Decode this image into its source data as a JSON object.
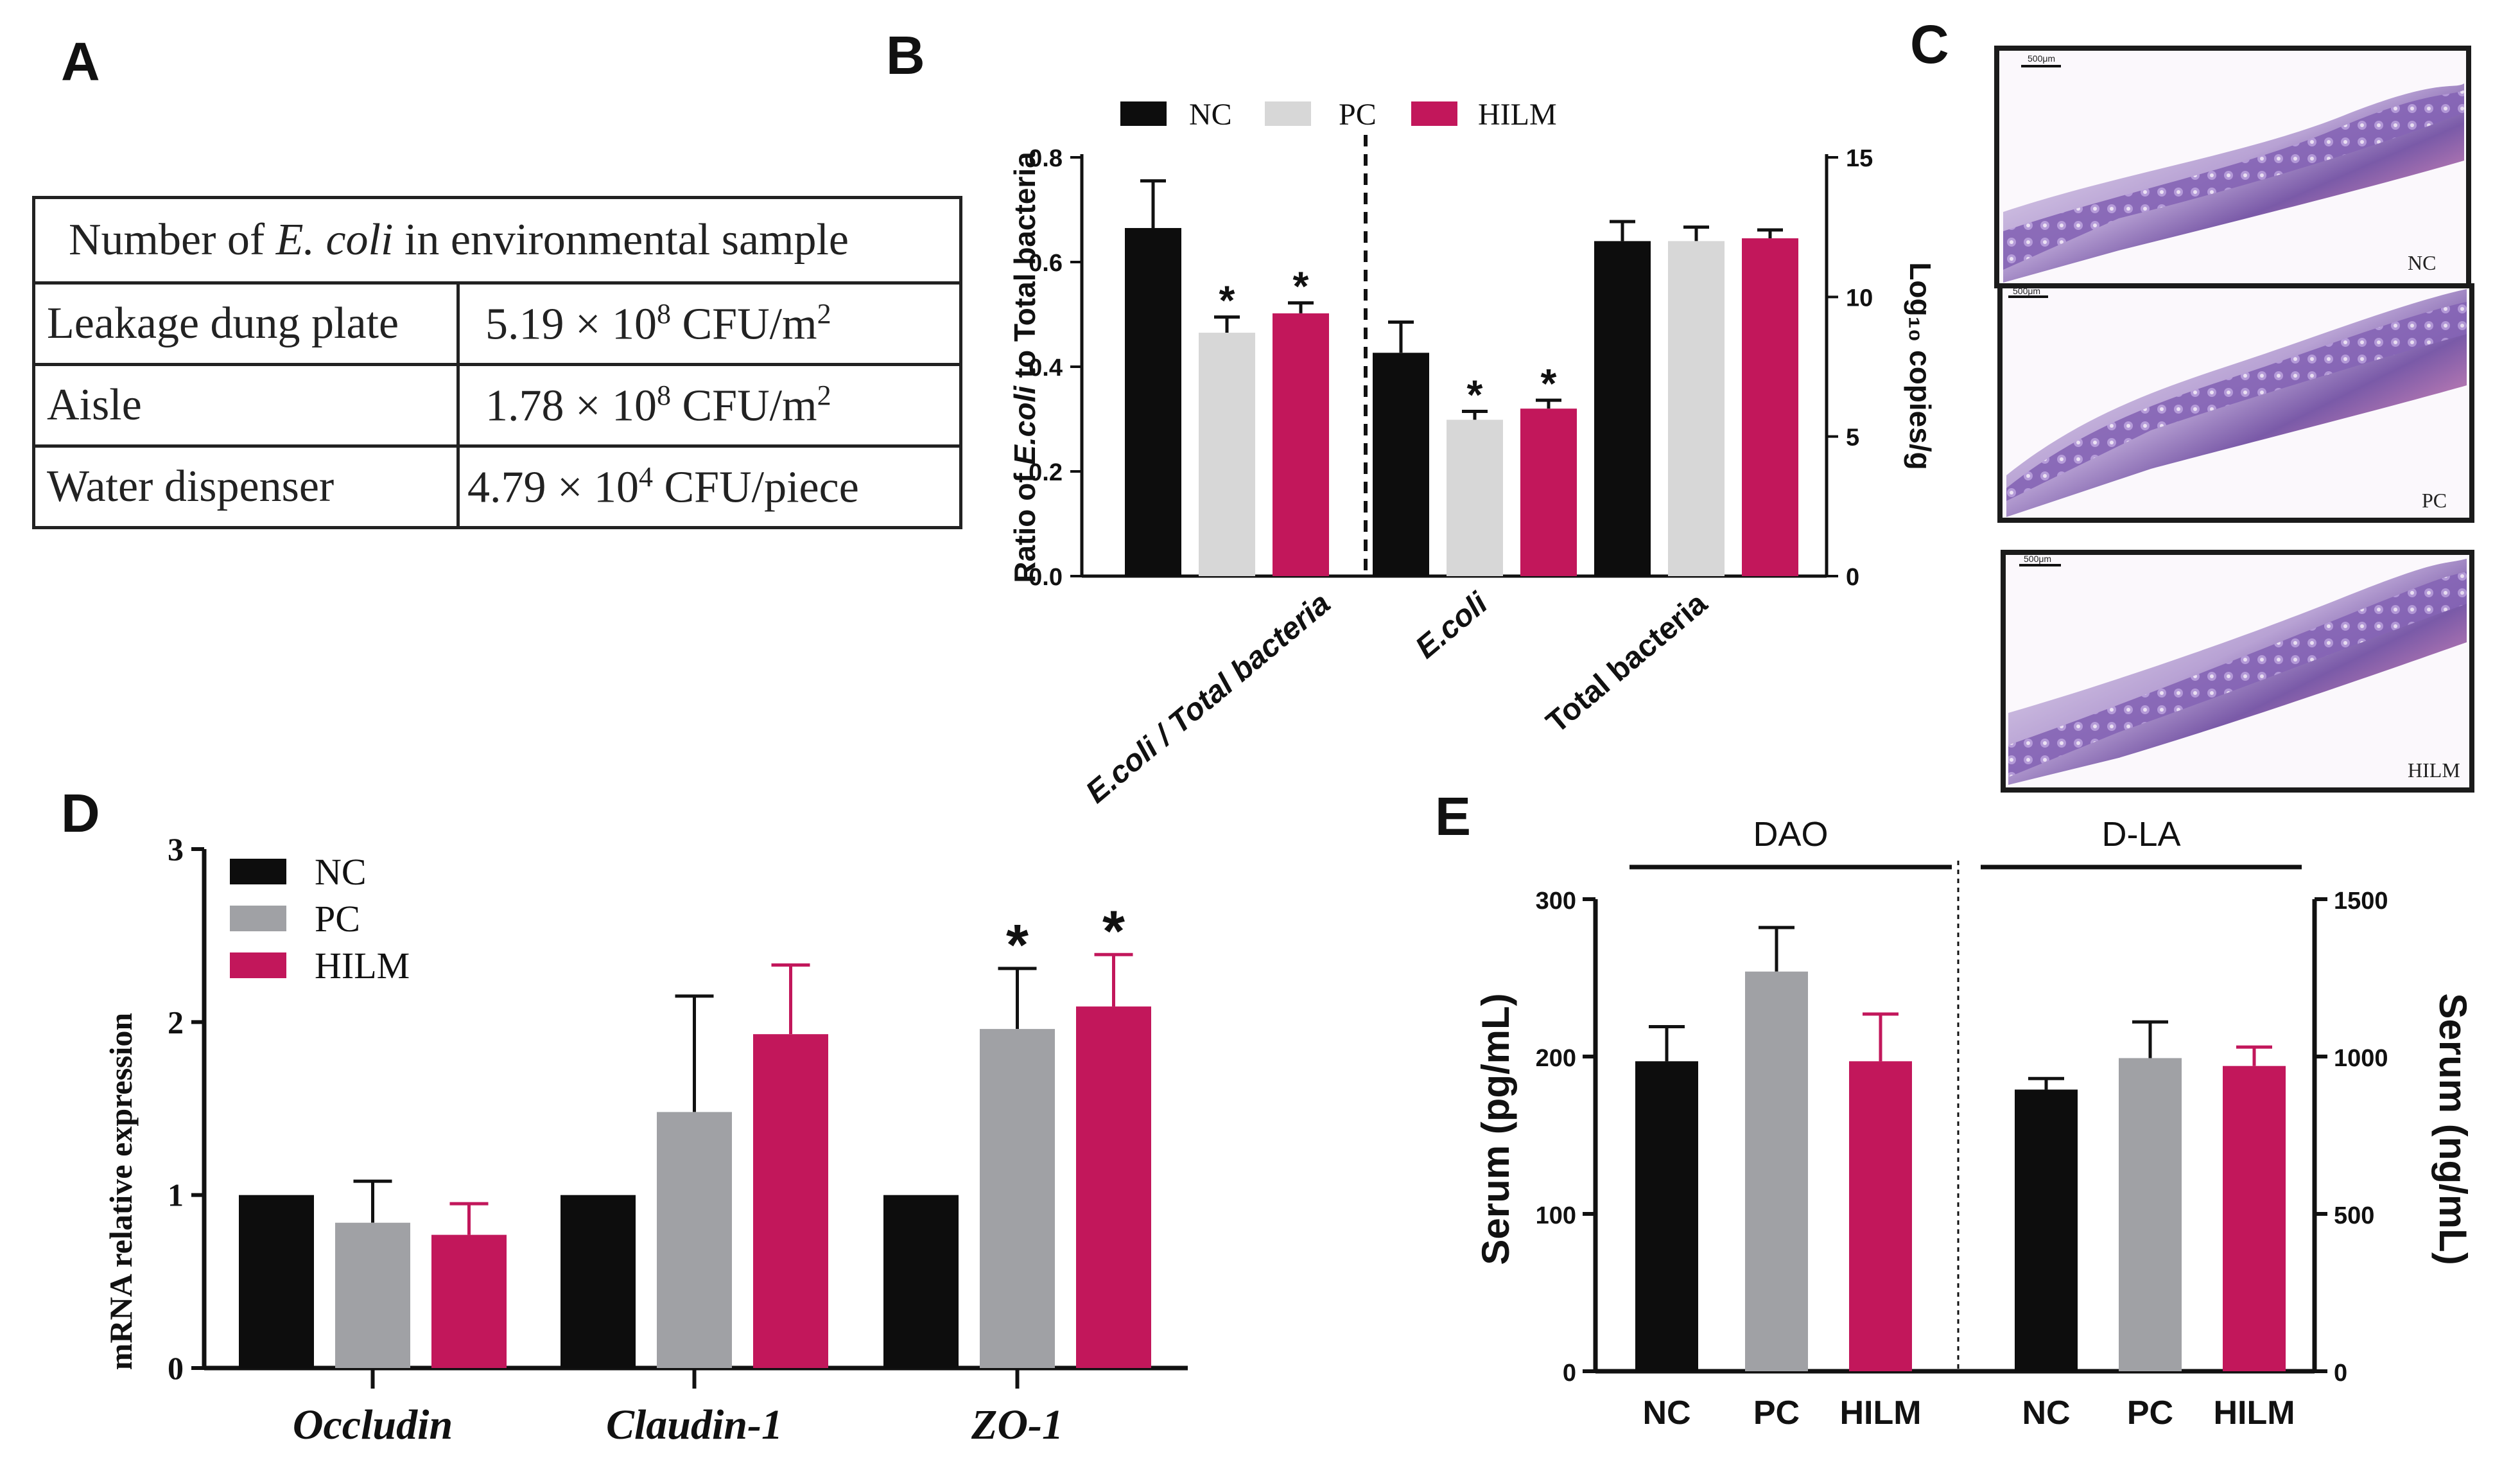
{
  "panels": {
    "a": "A",
    "b": "B",
    "c": "C",
    "d": "D",
    "e": "E"
  },
  "table": {
    "header_prefix": "Number of ",
    "header_species": "E. coli",
    "header_suffix": " in environmental sample",
    "rows": [
      {
        "site": "Leakage dung plate",
        "mantissa": "5.19 × 10",
        "exp": "8",
        "unit": " CFU/m",
        "unit_exp": "2"
      },
      {
        "site": "Aisle",
        "mantissa": "1.78 × 10",
        "exp": "8",
        "unit": " CFU/m",
        "unit_exp": "2"
      },
      {
        "site": "Water dispenser",
        "mantissa": "4.79 × 10",
        "exp": "4",
        "unit": " CFU/piece",
        "unit_exp": ""
      }
    ]
  },
  "micrographs": [
    {
      "label": "NC",
      "scale": "500μm"
    },
    {
      "label": "PC",
      "scale": "500μm"
    },
    {
      "label": "HILM",
      "scale": "500μm"
    }
  ],
  "colors": {
    "NC": "#0d0d0d",
    "PC_light": "#d7d7d7",
    "PC_dark": "#a0a1a5",
    "HILM": "#c2175b"
  },
  "chart_data": [
    {
      "id": "B",
      "type": "bar",
      "groups": [
        "NC",
        "PC",
        "HILM"
      ],
      "legend": [
        "NC",
        "PC",
        "HILM"
      ],
      "left_axis": {
        "label_prefix": "Ratio of ",
        "label_species": "E.coli",
        "label_suffix": "  to Total bacteria",
        "ylim": [
          0,
          0.8
        ],
        "ticks": [
          "0.0",
          "0.2",
          "0.4",
          "0.6",
          "0.8"
        ],
        "tick_values": [
          0,
          0.2,
          0.4,
          0.6,
          0.8
        ]
      },
      "right_axis": {
        "label": "Log₁₀ copies/g",
        "ylim": [
          0,
          15
        ],
        "ticks": [
          "0",
          "5",
          "10",
          "15"
        ],
        "tick_values": [
          0,
          5,
          10,
          15
        ]
      },
      "categories": [
        {
          "name": "E.coli / Total bacteria",
          "axis": "left",
          "values": [
            0.665,
            0.465,
            0.502
          ],
          "errors": [
            0.09,
            0.03,
            0.02
          ],
          "stars": [
            "",
            "*",
            "*"
          ]
        },
        {
          "name": "E.coli",
          "axis": "right",
          "values": [
            8.0,
            5.6,
            6.0
          ],
          "errors": [
            1.1,
            0.3,
            0.3
          ],
          "stars": [
            "",
            "*",
            "*"
          ]
        },
        {
          "name": "Total bacteria",
          "axis": "right",
          "values": [
            12.0,
            12.0,
            12.1
          ],
          "errors": [
            0.7,
            0.5,
            0.3
          ],
          "stars": [
            "",
            "",
            ""
          ]
        }
      ]
    },
    {
      "id": "D",
      "type": "bar",
      "groups": [
        "NC",
        "PC",
        "HILM"
      ],
      "legend": [
        "NC",
        "PC",
        "HILM"
      ],
      "ylabel": "mRNA relative expression",
      "ylim": [
        0,
        3
      ],
      "ticks": [
        "0",
        "1",
        "2",
        "3"
      ],
      "tick_values": [
        0,
        1,
        2,
        3
      ],
      "categories": [
        {
          "name": "Occludin",
          "values": [
            1.0,
            0.84,
            0.77
          ],
          "errors": [
            0,
            0.24,
            0.18
          ],
          "stars": [
            "",
            "",
            ""
          ]
        },
        {
          "name": "Claudin-1",
          "values": [
            1.0,
            1.48,
            1.93
          ],
          "errors": [
            0,
            0.67,
            0.4
          ],
          "stars": [
            "",
            "",
            ""
          ]
        },
        {
          "name": "ZO-1",
          "values": [
            1.0,
            1.96,
            2.09
          ],
          "errors": [
            0,
            0.35,
            0.3
          ],
          "stars": [
            "",
            "*",
            "*"
          ]
        }
      ]
    },
    {
      "id": "E",
      "type": "bar",
      "groups": [
        "NC",
        "PC",
        "HILM"
      ],
      "left_axis": {
        "label": "Serum (pg/mL)",
        "ylim": [
          0,
          300
        ],
        "ticks": [
          "0",
          "100",
          "200",
          "300"
        ],
        "tick_values": [
          0,
          100,
          200,
          300
        ]
      },
      "right_axis": {
        "label": "Serum (ng/mL)",
        "ylim": [
          0,
          1500
        ],
        "ticks": [
          "0",
          "500",
          "1000",
          "1500"
        ],
        "tick_values": [
          0,
          500,
          1000,
          1500
        ]
      },
      "sections": [
        {
          "name": "DAO",
          "axis": "left",
          "labels": [
            "NC",
            "PC",
            "HILM"
          ],
          "values": [
            197,
            254,
            197
          ],
          "errors": [
            22,
            28,
            30
          ]
        },
        {
          "name": "D-LA",
          "axis": "right",
          "labels": [
            "NC",
            "PC",
            "HILM"
          ],
          "values": [
            895,
            995,
            970
          ],
          "errors": [
            35,
            115,
            60
          ]
        }
      ]
    }
  ]
}
